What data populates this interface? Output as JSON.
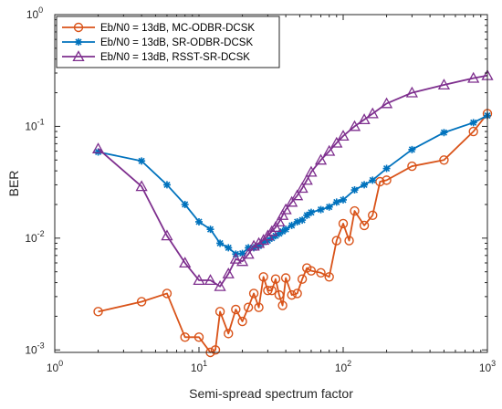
{
  "chart_data": {
    "type": "line",
    "xlabel": "Semi-spread spectrum factor",
    "ylabel": "BER",
    "xscale": "log",
    "yscale": "log",
    "xlim": [
      1,
      1000
    ],
    "ylim": [
      0.00095,
      1
    ],
    "x_ticks": [
      {
        "value": 1,
        "base": "10",
        "exp": "0"
      },
      {
        "value": 10,
        "base": "10",
        "exp": "1"
      },
      {
        "value": 100,
        "base": "10",
        "exp": "2"
      },
      {
        "value": 1000,
        "base": "10",
        "exp": "3"
      }
    ],
    "y_ticks": [
      {
        "value": 0.001,
        "base": "10",
        "exp": "-3"
      },
      {
        "value": 0.01,
        "base": "10",
        "exp": "-2"
      },
      {
        "value": 0.1,
        "base": "10",
        "exp": "-1"
      },
      {
        "value": 1,
        "base": "10",
        "exp": "0"
      }
    ],
    "grid": false,
    "legend_position": "top-left",
    "series": [
      {
        "name": "Eb/N0 = 13dB, MC-ODBR-DCSK",
        "color": "#D95319",
        "marker": "circle",
        "x": [
          2,
          4,
          6,
          8,
          10,
          12,
          13,
          14,
          16,
          18,
          20,
          22,
          24,
          26,
          28,
          30,
          32,
          34,
          36,
          38,
          40,
          44,
          48,
          52,
          56,
          60,
          70,
          80,
          90,
          100,
          110,
          120,
          140,
          160,
          180,
          200,
          300,
          500,
          800,
          1000
        ],
        "y": [
          0.0022,
          0.0027,
          0.0032,
          0.0013,
          0.0013,
          0.00095,
          0.001,
          0.0022,
          0.0014,
          0.0023,
          0.0018,
          0.0024,
          0.0032,
          0.0024,
          0.0045,
          0.0034,
          0.0034,
          0.0043,
          0.0031,
          0.0025,
          0.0044,
          0.0031,
          0.0032,
          0.0043,
          0.0054,
          0.0051,
          0.0049,
          0.0045,
          0.0095,
          0.0135,
          0.0095,
          0.0175,
          0.013,
          0.016,
          0.032,
          0.033,
          0.044,
          0.05,
          0.09,
          0.13
        ]
      },
      {
        "name": "Eb/N0 = 13dB, SR-ODBR-DCSK",
        "color": "#0072BD",
        "marker": "star",
        "x": [
          2,
          4,
          6,
          8,
          10,
          12,
          14,
          16,
          18,
          20,
          22,
          24,
          26,
          28,
          30,
          32,
          34,
          36,
          38,
          40,
          44,
          48,
          52,
          56,
          60,
          70,
          80,
          90,
          100,
          120,
          140,
          160,
          200,
          300,
          500,
          800,
          1000
        ],
        "y": [
          0.059,
          0.049,
          0.03,
          0.02,
          0.014,
          0.012,
          0.009,
          0.0082,
          0.0072,
          0.0073,
          0.0082,
          0.0082,
          0.0085,
          0.0092,
          0.0095,
          0.01,
          0.0105,
          0.011,
          0.0115,
          0.012,
          0.013,
          0.014,
          0.0145,
          0.016,
          0.017,
          0.018,
          0.019,
          0.021,
          0.022,
          0.027,
          0.03,
          0.033,
          0.042,
          0.062,
          0.088,
          0.108,
          0.125
        ]
      },
      {
        "name": "Eb/N0 = 13dB, RSST-SR-DCSK",
        "color": "#7E2F8E",
        "marker": "triangle",
        "x": [
          2,
          4,
          6,
          8,
          10,
          12,
          14,
          16,
          18,
          20,
          22,
          24,
          26,
          28,
          30,
          32,
          34,
          36,
          38,
          40,
          44,
          48,
          52,
          56,
          60,
          70,
          80,
          90,
          100,
          120,
          140,
          160,
          200,
          300,
          500,
          800,
          1000
        ],
        "y": [
          0.063,
          0.029,
          0.0105,
          0.006,
          0.0042,
          0.0042,
          0.0037,
          0.0048,
          0.0065,
          0.0062,
          0.0072,
          0.0085,
          0.009,
          0.0096,
          0.0105,
          0.0115,
          0.0125,
          0.014,
          0.016,
          0.018,
          0.021,
          0.024,
          0.028,
          0.033,
          0.039,
          0.05,
          0.06,
          0.071,
          0.082,
          0.1,
          0.115,
          0.13,
          0.16,
          0.2,
          0.235,
          0.27,
          0.285
        ]
      }
    ]
  }
}
